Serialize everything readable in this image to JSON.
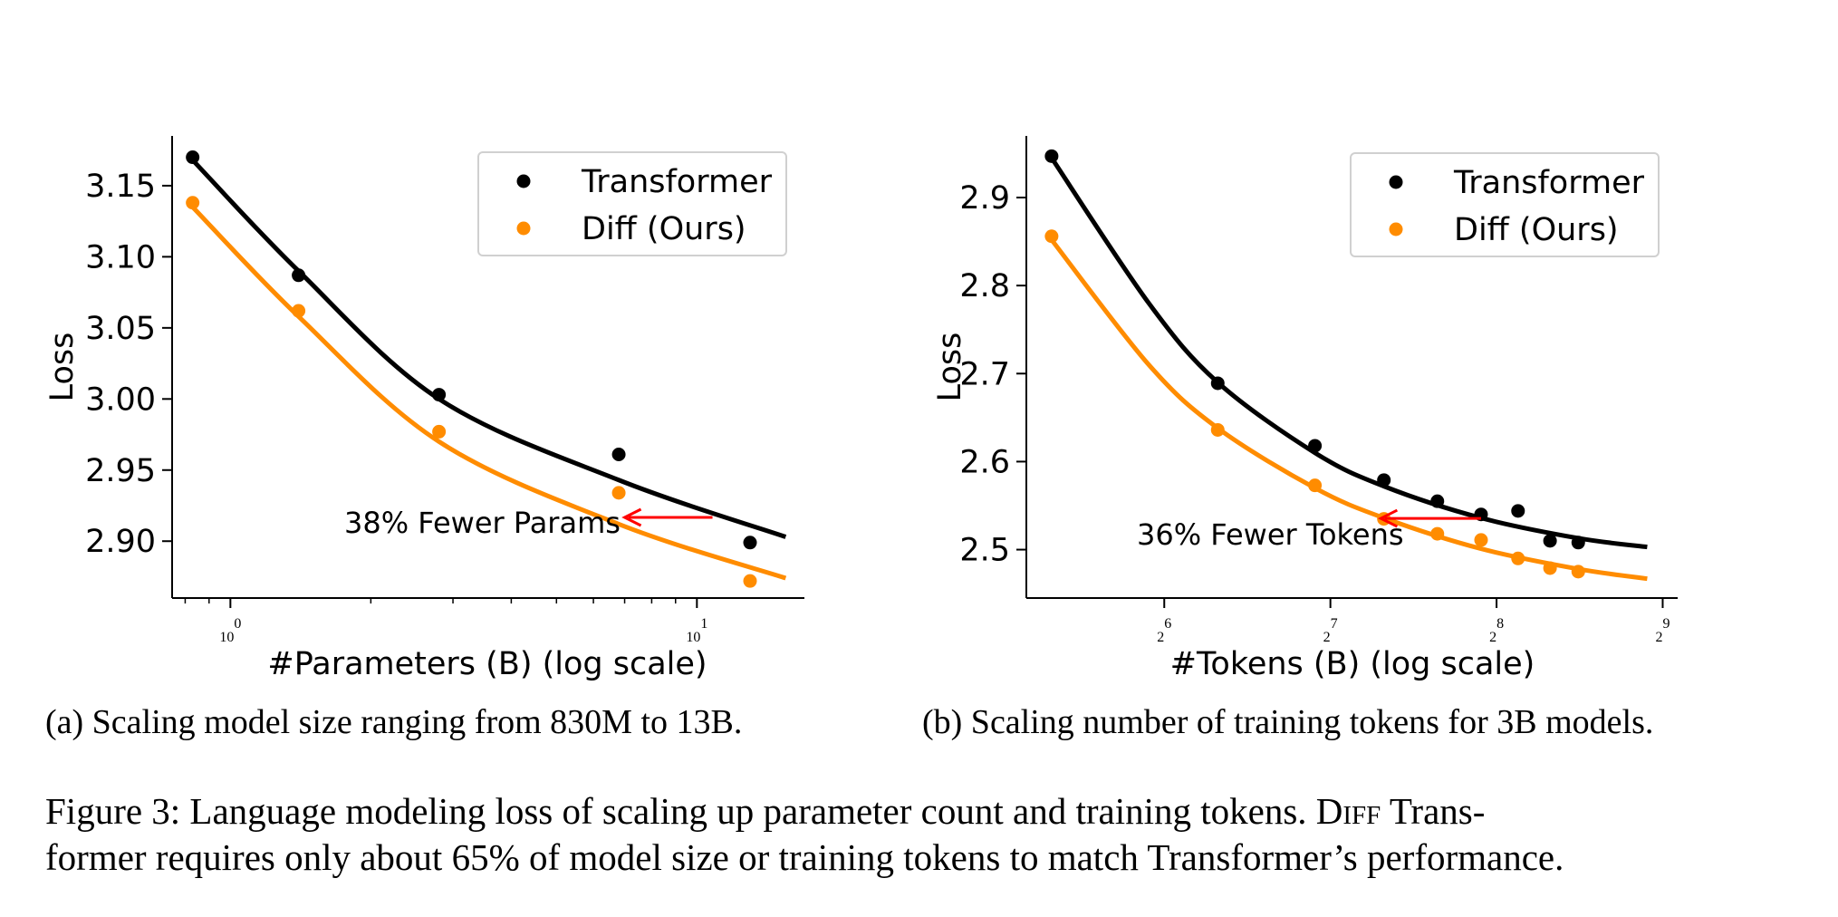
{
  "chart_data": [
    {
      "type": "scatter",
      "title": "",
      "xlabel": "#Parameters (B) (log scale)",
      "ylabel": "Loss",
      "xscale": "log10",
      "xlim": [
        0.75,
        17
      ],
      "ylim": [
        2.86,
        3.185
      ],
      "xticks": [
        {
          "value": 1,
          "base": "10",
          "exp": "0"
        },
        {
          "value": 10,
          "base": "10",
          "exp": "1"
        }
      ],
      "yticks": [
        {
          "value": 2.9,
          "label": "2.90"
        },
        {
          "value": 2.95,
          "label": "2.95"
        },
        {
          "value": 3.0,
          "label": "3.00"
        },
        {
          "value": 3.05,
          "label": "3.05"
        },
        {
          "value": 3.1,
          "label": "3.10"
        },
        {
          "value": 3.15,
          "label": "3.15"
        }
      ],
      "legend_position": "top-right",
      "series": [
        {
          "name": "Transformer",
          "color": "#000000",
          "x": [
            0.83,
            1.4,
            2.8,
            6.8,
            13.0
          ],
          "y": [
            3.17,
            3.087,
            3.003,
            2.961,
            2.899
          ],
          "fit_x": [
            0.83,
            15.5
          ],
          "fit": {
            "y_at_min_x": 3.168,
            "shape": [
              1.0,
              0.55,
              0.26,
              0.13
            ]
          }
        },
        {
          "name": "Diff (Ours)",
          "color": "#ff8c00",
          "x": [
            0.83,
            1.4,
            2.8,
            6.8,
            13.0
          ],
          "y": [
            3.138,
            3.062,
            2.977,
            2.934,
            2.872
          ],
          "fit_x": [
            0.83,
            15.5
          ],
          "fit": {
            "y_at_min_x": 3.135,
            "shape": [
              1.0,
              0.55,
              0.26,
              0.13
            ]
          }
        }
      ],
      "fit_y": {
        "Transformer": [
          3.168,
          3.09,
          3.0,
          2.943,
          2.903
        ],
        "Diff (Ours)": [
          3.135,
          3.058,
          2.97,
          2.912,
          2.874
        ]
      },
      "fit_x_points": [
        0.83,
        1.4,
        2.8,
        6.8,
        15.5
      ],
      "annotation": {
        "text": "38% Fewer Params",
        "arrow_from": [
          10.8,
          2.9167
        ],
        "arrow_to": [
          7.0,
          2.9167
        ],
        "color": "#ff0000"
      }
    },
    {
      "type": "scatter",
      "title": "",
      "xlabel": "#Tokens (B) (log scale)",
      "ylabel": "Loss",
      "xscale": "log2",
      "xlim": [
        36,
        545
      ],
      "ylim": [
        2.445,
        2.97
      ],
      "xticks": [
        {
          "value": 64,
          "base": "2",
          "exp": "6"
        },
        {
          "value": 128,
          "base": "2",
          "exp": "7"
        },
        {
          "value": 256,
          "base": "2",
          "exp": "8"
        },
        {
          "value": 512,
          "base": "2",
          "exp": "9"
        }
      ],
      "yticks": [
        {
          "value": 2.5,
          "label": "2.5"
        },
        {
          "value": 2.6,
          "label": "2.6"
        },
        {
          "value": 2.7,
          "label": "2.7"
        },
        {
          "value": 2.8,
          "label": "2.8"
        },
        {
          "value": 2.9,
          "label": "2.9"
        }
      ],
      "legend_position": "top-right",
      "series": [
        {
          "name": "Transformer",
          "color": "#000000",
          "x": [
            40,
            80,
            120,
            160,
            200,
            240,
            280,
            320,
            360
          ],
          "y": [
            2.947,
            2.689,
            2.618,
            2.579,
            2.555,
            2.54,
            2.544,
            2.51,
            2.508
          ]
        },
        {
          "name": "Diff (Ours)",
          "color": "#ff8c00",
          "x": [
            40,
            80,
            120,
            160,
            200,
            240,
            280,
            320,
            360
          ],
          "y": [
            2.856,
            2.636,
            2.573,
            2.535,
            2.518,
            2.511,
            2.49,
            2.479,
            2.475
          ]
        }
      ],
      "fit_x_points": [
        40,
        60,
        80,
        120,
        160,
        240,
        360,
        480
      ],
      "fit_y": {
        "Transformer": [
          2.945,
          2.78,
          2.69,
          2.61,
          2.572,
          2.536,
          2.513,
          2.503
        ],
        "Diff (Ours)": [
          2.852,
          2.71,
          2.638,
          2.57,
          2.536,
          2.501,
          2.478,
          2.467
        ]
      },
      "annotation": {
        "text": "36% Fewer Tokens",
        "arrow_from": [
          240,
          2.5355
        ],
        "arrow_to": [
          158,
          2.5355
        ],
        "color": "#ff0000"
      }
    }
  ],
  "captions": {
    "a": "(a) Scaling model size ranging from 830M to 13B.",
    "b": "(b) Scaling number of training tokens for 3B models.",
    "figure_line1_pre": "Figure 3: Language modeling loss of scaling up parameter count and training tokens. ",
    "figure_line1_sc": "Diff",
    "figure_line1_post": " Trans-",
    "figure_line2": "former requires only about 65% of model size or training tokens to match Transformer’s performance."
  }
}
